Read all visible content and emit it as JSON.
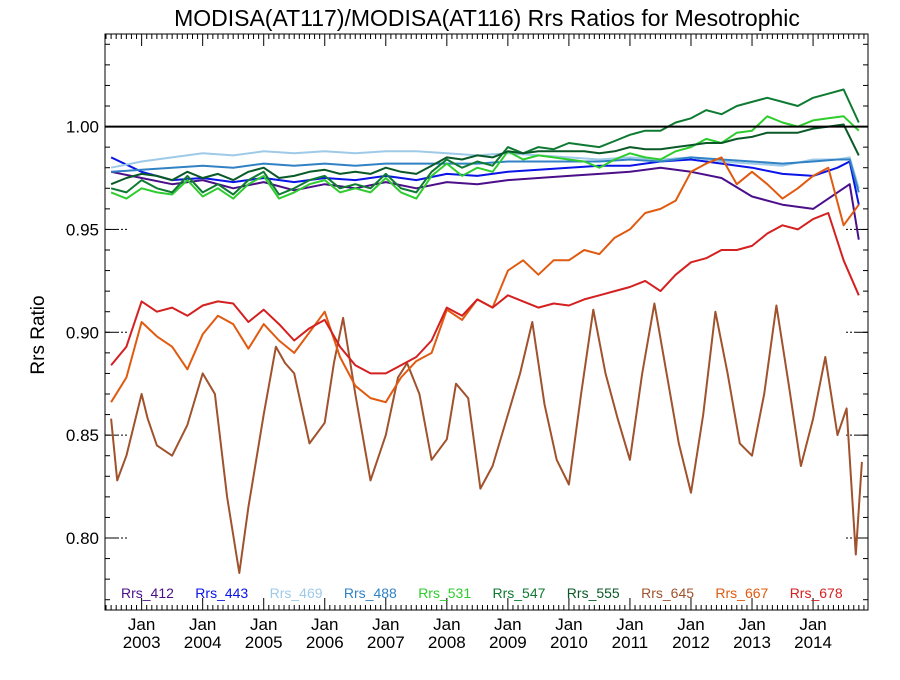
{
  "chart_data": {
    "type": "line",
    "title": "MODISA(AT117)/MODISA(AT116)  Rrs Ratios for Mesotrophic",
    "xlabel": "",
    "ylabel": "Rrs Ratio",
    "xlim": [
      2002.4,
      2014.9
    ],
    "ylim": [
      0.765,
      1.045
    ],
    "reference_line": 1.0,
    "yticks": [
      {
        "value": 0.8,
        "label": "0.80"
      },
      {
        "value": 0.85,
        "label": "0.85"
      },
      {
        "value": 0.9,
        "label": "0.90"
      },
      {
        "value": 0.95,
        "label": "0.95"
      },
      {
        "value": 1.0,
        "label": "1.00"
      }
    ],
    "xticks": [
      {
        "value": 2003.0,
        "month": "Jan",
        "year": "2003"
      },
      {
        "value": 2004.0,
        "month": "Jan",
        "year": "2004"
      },
      {
        "value": 2005.0,
        "month": "Jan",
        "year": "2005"
      },
      {
        "value": 2006.0,
        "month": "Jan",
        "year": "2006"
      },
      {
        "value": 2007.0,
        "month": "Jan",
        "year": "2007"
      },
      {
        "value": 2008.0,
        "month": "Jan",
        "year": "2008"
      },
      {
        "value": 2009.0,
        "month": "Jan",
        "year": "2009"
      },
      {
        "value": 2010.0,
        "month": "Jan",
        "year": "2010"
      },
      {
        "value": 2011.0,
        "month": "Jan",
        "year": "2011"
      },
      {
        "value": 2012.0,
        "month": "Jan",
        "year": "2012"
      },
      {
        "value": 2013.0,
        "month": "Jan",
        "year": "2013"
      },
      {
        "value": 2014.0,
        "month": "Jan",
        "year": "2014"
      }
    ],
    "legend_position": "bottom",
    "series": [
      {
        "name": "Rrs_412",
        "color": "#4b0f8a",
        "x": [
          2002.5,
          2003.0,
          2003.5,
          2004.0,
          2004.5,
          2005.0,
          2005.5,
          2006.0,
          2006.5,
          2007.0,
          2007.5,
          2008.0,
          2008.5,
          2009.0,
          2009.5,
          2010.0,
          2010.5,
          2011.0,
          2011.5,
          2012.0,
          2012.5,
          2013.0,
          2013.5,
          2014.0,
          2014.4,
          2014.6,
          2014.75
        ],
        "y": [
          0.978,
          0.975,
          0.972,
          0.974,
          0.97,
          0.973,
          0.969,
          0.972,
          0.97,
          0.973,
          0.97,
          0.973,
          0.972,
          0.974,
          0.975,
          0.976,
          0.977,
          0.978,
          0.98,
          0.978,
          0.975,
          0.966,
          0.962,
          0.96,
          0.968,
          0.972,
          0.945
        ]
      },
      {
        "name": "Rrs_443",
        "color": "#0a14e6",
        "x": [
          2002.5,
          2003.0,
          2003.5,
          2004.0,
          2004.5,
          2005.0,
          2005.5,
          2006.0,
          2006.5,
          2007.0,
          2007.5,
          2008.0,
          2008.5,
          2009.0,
          2009.5,
          2010.0,
          2010.5,
          2011.0,
          2011.5,
          2012.0,
          2012.5,
          2013.0,
          2013.5,
          2014.0,
          2014.4,
          2014.6,
          2014.75
        ],
        "y": [
          0.985,
          0.978,
          0.974,
          0.975,
          0.973,
          0.975,
          0.973,
          0.975,
          0.974,
          0.976,
          0.974,
          0.977,
          0.976,
          0.978,
          0.979,
          0.98,
          0.981,
          0.981,
          0.983,
          0.984,
          0.982,
          0.98,
          0.977,
          0.976,
          0.98,
          0.983,
          0.962
        ]
      },
      {
        "name": "Rrs_469",
        "color": "#9ecae8",
        "x": [
          2002.5,
          2003.0,
          2003.5,
          2004.0,
          2004.5,
          2005.0,
          2005.5,
          2006.0,
          2006.5,
          2007.0,
          2007.5,
          2008.0,
          2008.5,
          2009.0,
          2009.5,
          2010.0,
          2010.5,
          2011.0,
          2011.5,
          2012.0,
          2012.5,
          2013.0,
          2013.5,
          2014.0,
          2014.4,
          2014.6,
          2014.75
        ],
        "y": [
          0.98,
          0.983,
          0.985,
          0.987,
          0.986,
          0.988,
          0.987,
          0.988,
          0.987,
          0.988,
          0.988,
          0.987,
          0.986,
          0.987,
          0.986,
          0.985,
          0.984,
          0.985,
          0.984,
          0.985,
          0.983,
          0.982,
          0.981,
          0.984,
          0.984,
          0.985,
          0.97
        ]
      },
      {
        "name": "Rrs_488",
        "color": "#3182c4",
        "x": [
          2002.5,
          2003.0,
          2003.5,
          2004.0,
          2004.5,
          2005.0,
          2005.5,
          2006.0,
          2006.5,
          2007.0,
          2007.5,
          2008.0,
          2008.5,
          2009.0,
          2009.5,
          2010.0,
          2010.5,
          2011.0,
          2011.5,
          2012.0,
          2012.5,
          2013.0,
          2013.5,
          2014.0,
          2014.4,
          2014.6,
          2014.75
        ],
        "y": [
          0.978,
          0.979,
          0.98,
          0.981,
          0.98,
          0.982,
          0.981,
          0.982,
          0.981,
          0.982,
          0.982,
          0.982,
          0.982,
          0.983,
          0.983,
          0.983,
          0.983,
          0.984,
          0.983,
          0.985,
          0.984,
          0.983,
          0.982,
          0.983,
          0.984,
          0.984,
          0.968
        ]
      },
      {
        "name": "Rrs_531",
        "color": "#2ecc2e",
        "x": [
          2002.5,
          2002.75,
          2003.0,
          2003.25,
          2003.5,
          2003.75,
          2004.0,
          2004.25,
          2004.5,
          2004.75,
          2005.0,
          2005.25,
          2005.5,
          2005.75,
          2006.0,
          2006.25,
          2006.5,
          2006.75,
          2007.0,
          2007.25,
          2007.5,
          2007.75,
          2008.0,
          2008.25,
          2008.5,
          2008.75,
          2009.0,
          2009.25,
          2009.5,
          2009.75,
          2010.0,
          2010.25,
          2010.5,
          2010.75,
          2011.0,
          2011.25,
          2011.5,
          2011.75,
          2012.0,
          2012.25,
          2012.5,
          2012.75,
          2013.0,
          2013.25,
          2013.5,
          2013.75,
          2014.0,
          2014.25,
          2014.5,
          2014.75
        ],
        "y": [
          0.968,
          0.965,
          0.97,
          0.968,
          0.967,
          0.974,
          0.966,
          0.97,
          0.965,
          0.972,
          0.976,
          0.965,
          0.968,
          0.972,
          0.974,
          0.968,
          0.97,
          0.968,
          0.975,
          0.968,
          0.965,
          0.976,
          0.982,
          0.976,
          0.98,
          0.978,
          0.988,
          0.984,
          0.986,
          0.985,
          0.984,
          0.983,
          0.98,
          0.984,
          0.987,
          0.985,
          0.984,
          0.988,
          0.99,
          0.994,
          0.992,
          0.997,
          0.998,
          1.005,
          1.002,
          1.0,
          1.003,
          1.004,
          1.005,
          0.998
        ]
      },
      {
        "name": "Rrs_547",
        "color": "#0e7a32",
        "x": [
          2002.5,
          2002.75,
          2003.0,
          2003.25,
          2003.5,
          2003.75,
          2004.0,
          2004.25,
          2004.5,
          2004.75,
          2005.0,
          2005.25,
          2005.5,
          2005.75,
          2006.0,
          2006.25,
          2006.5,
          2006.75,
          2007.0,
          2007.25,
          2007.5,
          2007.75,
          2008.0,
          2008.25,
          2008.5,
          2008.75,
          2009.0,
          2009.25,
          2009.5,
          2009.75,
          2010.0,
          2010.25,
          2010.5,
          2010.75,
          2011.0,
          2011.25,
          2011.5,
          2011.75,
          2012.0,
          2012.25,
          2012.5,
          2012.75,
          2013.0,
          2013.25,
          2013.5,
          2013.75,
          2014.0,
          2014.25,
          2014.5,
          2014.75
        ],
        "y": [
          0.97,
          0.968,
          0.974,
          0.97,
          0.968,
          0.976,
          0.968,
          0.972,
          0.967,
          0.974,
          0.978,
          0.967,
          0.97,
          0.974,
          0.976,
          0.97,
          0.972,
          0.97,
          0.977,
          0.97,
          0.968,
          0.978,
          0.984,
          0.98,
          0.983,
          0.981,
          0.99,
          0.987,
          0.99,
          0.989,
          0.992,
          0.991,
          0.99,
          0.993,
          0.996,
          0.998,
          0.998,
          1.002,
          1.004,
          1.008,
          1.006,
          1.01,
          1.012,
          1.014,
          1.012,
          1.01,
          1.014,
          1.016,
          1.018,
          1.002
        ]
      },
      {
        "name": "Rrs_555",
        "color": "#0a5a28",
        "x": [
          2002.5,
          2002.75,
          2003.0,
          2003.25,
          2003.5,
          2003.75,
          2004.0,
          2004.25,
          2004.5,
          2004.75,
          2005.0,
          2005.25,
          2005.5,
          2005.75,
          2006.0,
          2006.25,
          2006.5,
          2006.75,
          2007.0,
          2007.25,
          2007.5,
          2007.75,
          2008.0,
          2008.25,
          2008.5,
          2008.75,
          2009.0,
          2009.25,
          2009.5,
          2009.75,
          2010.0,
          2010.25,
          2010.5,
          2010.75,
          2011.0,
          2011.25,
          2011.5,
          2011.75,
          2012.0,
          2012.25,
          2012.5,
          2012.75,
          2013.0,
          2013.25,
          2013.5,
          2013.75,
          2014.0,
          2014.25,
          2014.5,
          2014.75
        ],
        "y": [
          0.972,
          0.975,
          0.977,
          0.976,
          0.974,
          0.978,
          0.975,
          0.977,
          0.974,
          0.978,
          0.98,
          0.975,
          0.976,
          0.978,
          0.979,
          0.977,
          0.978,
          0.977,
          0.98,
          0.978,
          0.977,
          0.981,
          0.985,
          0.984,
          0.986,
          0.985,
          0.988,
          0.987,
          0.988,
          0.988,
          0.988,
          0.988,
          0.987,
          0.988,
          0.99,
          0.989,
          0.989,
          0.99,
          0.991,
          0.992,
          0.992,
          0.994,
          0.995,
          0.997,
          0.997,
          0.997,
          0.999,
          1.0,
          1.001,
          0.986
        ]
      },
      {
        "name": "Rrs_645",
        "color": "#a0522d",
        "x": [
          2002.5,
          2002.6,
          2002.75,
          2003.0,
          2003.1,
          2003.25,
          2003.5,
          2003.75,
          2004.0,
          2004.2,
          2004.4,
          2004.6,
          2004.75,
          2005.0,
          2005.2,
          2005.35,
          2005.5,
          2005.75,
          2006.0,
          2006.15,
          2006.3,
          2006.5,
          2006.75,
          2007.0,
          2007.2,
          2007.35,
          2007.55,
          2007.75,
          2008.0,
          2008.15,
          2008.35,
          2008.55,
          2008.75,
          2009.0,
          2009.2,
          2009.4,
          2009.6,
          2009.8,
          2010.0,
          2010.2,
          2010.4,
          2010.6,
          2010.8,
          2011.0,
          2011.2,
          2011.4,
          2011.6,
          2011.8,
          2012.0,
          2012.2,
          2012.4,
          2012.6,
          2012.8,
          2013.0,
          2013.2,
          2013.4,
          2013.6,
          2013.8,
          2014.0,
          2014.2,
          2014.4,
          2014.55,
          2014.7,
          2014.8
        ],
        "y": [
          0.858,
          0.828,
          0.84,
          0.87,
          0.858,
          0.845,
          0.84,
          0.855,
          0.88,
          0.87,
          0.82,
          0.783,
          0.815,
          0.86,
          0.893,
          0.885,
          0.88,
          0.846,
          0.856,
          0.885,
          0.907,
          0.87,
          0.828,
          0.85,
          0.878,
          0.885,
          0.87,
          0.838,
          0.848,
          0.875,
          0.868,
          0.824,
          0.835,
          0.86,
          0.88,
          0.905,
          0.865,
          0.838,
          0.826,
          0.87,
          0.911,
          0.88,
          0.858,
          0.838,
          0.88,
          0.914,
          0.88,
          0.846,
          0.822,
          0.86,
          0.91,
          0.88,
          0.846,
          0.84,
          0.87,
          0.913,
          0.875,
          0.835,
          0.858,
          0.888,
          0.85,
          0.863,
          0.792,
          0.837
        ]
      },
      {
        "name": "Rrs_667",
        "color": "#e05a10",
        "x": [
          2002.5,
          2002.75,
          2003.0,
          2003.25,
          2003.5,
          2003.75,
          2004.0,
          2004.25,
          2004.5,
          2004.75,
          2005.0,
          2005.25,
          2005.5,
          2005.75,
          2006.0,
          2006.25,
          2006.5,
          2006.75,
          2007.0,
          2007.25,
          2007.5,
          2007.75,
          2008.0,
          2008.25,
          2008.5,
          2008.75,
          2009.0,
          2009.25,
          2009.5,
          2009.75,
          2010.0,
          2010.25,
          2010.5,
          2010.75,
          2011.0,
          2011.25,
          2011.5,
          2011.75,
          2012.0,
          2012.25,
          2012.5,
          2012.75,
          2013.0,
          2013.25,
          2013.5,
          2013.75,
          2014.0,
          2014.25,
          2014.5,
          2014.75
        ],
        "y": [
          0.866,
          0.878,
          0.905,
          0.898,
          0.893,
          0.882,
          0.899,
          0.908,
          0.904,
          0.892,
          0.904,
          0.896,
          0.89,
          0.9,
          0.91,
          0.888,
          0.874,
          0.868,
          0.866,
          0.878,
          0.886,
          0.89,
          0.911,
          0.906,
          0.916,
          0.912,
          0.93,
          0.935,
          0.928,
          0.935,
          0.935,
          0.94,
          0.938,
          0.946,
          0.95,
          0.958,
          0.96,
          0.964,
          0.978,
          0.982,
          0.985,
          0.972,
          0.978,
          0.972,
          0.965,
          0.97,
          0.976,
          0.98,
          0.952,
          0.962
        ]
      },
      {
        "name": "Rrs_678",
        "color": "#d42020",
        "x": [
          2002.5,
          2002.75,
          2003.0,
          2003.25,
          2003.5,
          2003.75,
          2004.0,
          2004.25,
          2004.5,
          2004.75,
          2005.0,
          2005.25,
          2005.5,
          2005.75,
          2006.0,
          2006.25,
          2006.5,
          2006.75,
          2007.0,
          2007.25,
          2007.5,
          2007.75,
          2008.0,
          2008.25,
          2008.5,
          2008.75,
          2009.0,
          2009.25,
          2009.5,
          2009.75,
          2010.0,
          2010.25,
          2010.5,
          2010.75,
          2011.0,
          2011.25,
          2011.5,
          2011.75,
          2012.0,
          2012.25,
          2012.5,
          2012.75,
          2013.0,
          2013.25,
          2013.5,
          2013.75,
          2014.0,
          2014.25,
          2014.5,
          2014.75
        ],
        "y": [
          0.884,
          0.893,
          0.915,
          0.91,
          0.912,
          0.908,
          0.913,
          0.915,
          0.914,
          0.905,
          0.911,
          0.904,
          0.896,
          0.902,
          0.906,
          0.893,
          0.884,
          0.88,
          0.88,
          0.884,
          0.888,
          0.896,
          0.912,
          0.908,
          0.916,
          0.912,
          0.918,
          0.915,
          0.912,
          0.914,
          0.913,
          0.916,
          0.918,
          0.92,
          0.922,
          0.925,
          0.92,
          0.928,
          0.934,
          0.936,
          0.94,
          0.94,
          0.942,
          0.948,
          0.952,
          0.95,
          0.955,
          0.958,
          0.935,
          0.918
        ]
      }
    ]
  }
}
